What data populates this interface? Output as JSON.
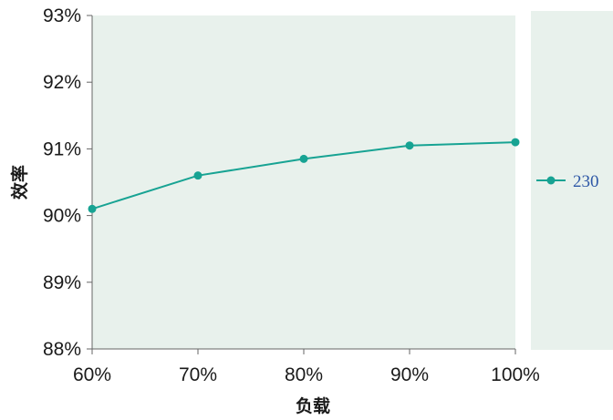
{
  "chart_data": {
    "type": "line",
    "x": [
      "60%",
      "70%",
      "80%",
      "90%",
      "100%"
    ],
    "series": [
      {
        "name": "230",
        "values": [
          90.1,
          90.6,
          90.85,
          91.05,
          91.1
        ]
      }
    ],
    "ylim": [
      88,
      93
    ],
    "y_ticks": [
      "88%",
      "89%",
      "90%",
      "91%",
      "92%",
      "93%"
    ],
    "xlabel": "负载",
    "ylabel": "效率",
    "grid": false,
    "legend_position": "right",
    "colors": {
      "series": "#17a393",
      "plot_background": "#e8f1ec",
      "legend_background": "#e8f1ec",
      "legend_text": "#2d57a6",
      "axis": "#666666"
    }
  }
}
